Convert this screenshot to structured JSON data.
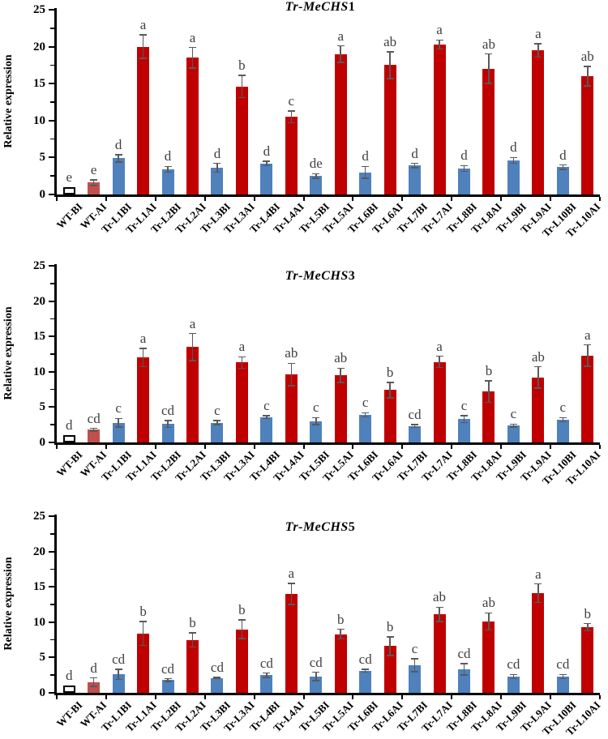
{
  "figure": {
    "y_tick_labels": [
      "0",
      "5",
      "10",
      "15",
      "20",
      "25"
    ],
    "colors": {
      "ai_bar": "#C00000",
      "bi_bar": "#4F81BD",
      "wt_ai_bar": "#C0504D",
      "wt_bi_fill": "#FFFFFF",
      "wt_bi_border": "#000000",
      "error_bar": "#595959",
      "letter_text": "#3F3F3F",
      "axis": "#000000"
    }
  },
  "chart_data": [
    {
      "type": "bar",
      "title": "Tr-MeCHS1",
      "title_italic": "Tr-MeCHS",
      "title_number": "1",
      "ylabel": "Relative expression",
      "ylim": [
        0,
        25
      ],
      "grid": false,
      "legend": "none",
      "categories": [
        "WT-BI",
        "WT-AI",
        "Tr-L1BI",
        "Tr-L1AI",
        "Tr-L2BI",
        "Tr-L2AI",
        "Tr-L3BI",
        "Tr-L3AI",
        "Tr-L4BI",
        "Tr-L4AI",
        "Tr-L5BI",
        "Tr-L5AI",
        "Tr-L6BI",
        "Tr-L6AI",
        "Tr-L7BI",
        "Tr-L7AI",
        "Tr-L8BI",
        "Tr-L8AI",
        "Tr-L9BI",
        "Tr-L9AI",
        "Tr-L10BI",
        "Tr-L10AI"
      ],
      "values": [
        1.0,
        1.6,
        4.9,
        20.0,
        3.4,
        18.5,
        3.6,
        14.6,
        4.2,
        10.5,
        2.5,
        19.0,
        3.0,
        17.5,
        3.9,
        20.3,
        3.5,
        17.0,
        4.6,
        19.5,
        3.7,
        16.0
      ],
      "errors": [
        0,
        0.4,
        0.5,
        1.6,
        0.4,
        1.4,
        0.6,
        1.5,
        0.3,
        0.8,
        0.3,
        1.1,
        0.8,
        1.8,
        0.3,
        0.6,
        0.4,
        2.0,
        0.4,
        0.9,
        0.3,
        1.3
      ],
      "letters": [
        "e",
        "e",
        "d",
        "a",
        "d",
        "a",
        "d",
        "b",
        "d",
        "c",
        "de",
        "a",
        "d",
        "ab",
        "d",
        "a",
        "d",
        "ab",
        "d",
        "a",
        "d",
        "ab"
      ]
    },
    {
      "type": "bar",
      "title": "Tr-MeCHS3",
      "title_italic": "Tr-MeCHS",
      "title_number": "3",
      "ylabel": "Relative expression",
      "ylim": [
        0,
        25
      ],
      "grid": false,
      "legend": "none",
      "categories": [
        "WT-BI",
        "WT-AI",
        "Tr-L1BI",
        "Tr-L1AI",
        "Tr-L2BI",
        "Tr-L2AI",
        "Tr-L3BI",
        "Tr-L3AI",
        "Tr-L4BI",
        "Tr-L4AI",
        "Tr-L5BI",
        "Tr-L5AI",
        "Tr-L6BI",
        "Tr-L6AI",
        "Tr-L7BI",
        "Tr-L7AI",
        "Tr-L8BI",
        "Tr-L8AI",
        "Tr-L9BI",
        "Tr-L9AI",
        "Tr-L10BI",
        "Tr-L10AI"
      ],
      "values": [
        1.0,
        1.8,
        2.8,
        12.0,
        2.6,
        13.5,
        2.8,
        11.3,
        3.6,
        9.6,
        3.0,
        9.5,
        3.9,
        7.4,
        2.3,
        11.4,
        3.3,
        7.2,
        2.4,
        9.2,
        3.2,
        12.3
      ],
      "errors": [
        0,
        0.2,
        0.6,
        1.3,
        0.5,
        1.9,
        0.3,
        0.8,
        0.2,
        1.6,
        0.5,
        1.0,
        0.3,
        1.1,
        0.2,
        0.8,
        0.5,
        1.5,
        0.2,
        1.5,
        0.3,
        1.5
      ],
      "letters": [
        "d",
        "cd",
        "c",
        "a",
        "cd",
        "a",
        "c",
        "a",
        "c",
        "ab",
        "c",
        "ab",
        "c",
        "b",
        "cd",
        "a",
        "c",
        "b",
        "c",
        "ab",
        "c",
        "a"
      ]
    },
    {
      "type": "bar",
      "title": "Tr-MeCHS5",
      "title_italic": "Tr-MeCHS",
      "title_number": "5",
      "ylabel": "Relative expression",
      "ylim": [
        0,
        25
      ],
      "grid": false,
      "legend": "none",
      "categories": [
        "WT-BI",
        "WT-AI",
        "Tr-L1BI",
        "Tr-L1AI",
        "Tr-L2BI",
        "Tr-L2AI",
        "Tr-L3BI",
        "Tr-L3AI",
        "Tr-L4BI",
        "Tr-L4AI",
        "Tr-L5BI",
        "Tr-L5AI",
        "Tr-L6BI",
        "Tr-L6AI",
        "Tr-L7BI",
        "Tr-L7AI",
        "Tr-L8BI",
        "Tr-L8AI",
        "Tr-L9BI",
        "Tr-L9AI",
        "Tr-L10BI",
        "Tr-L10AI"
      ],
      "values": [
        1.0,
        1.5,
        2.6,
        8.4,
        1.8,
        7.5,
        2.1,
        9.0,
        2.5,
        14.0,
        2.3,
        8.3,
        3.1,
        6.6,
        3.9,
        11.1,
        3.3,
        10.1,
        2.3,
        14.1,
        2.3,
        9.3
      ],
      "errors": [
        0,
        0.6,
        0.7,
        1.7,
        0.2,
        1.0,
        0.1,
        1.3,
        0.3,
        1.5,
        0.6,
        0.7,
        0.2,
        1.3,
        0.9,
        1.0,
        0.8,
        1.2,
        0.3,
        1.3,
        0.3,
        0.5
      ],
      "letters": [
        "d",
        "d",
        "cd",
        "b",
        "cd",
        "b",
        "cd",
        "b",
        "cd",
        "a",
        "cd",
        "b",
        "cd",
        "b",
        "c",
        "ab",
        "cd",
        "ab",
        "cd",
        "a",
        "cd",
        "b"
      ]
    }
  ]
}
